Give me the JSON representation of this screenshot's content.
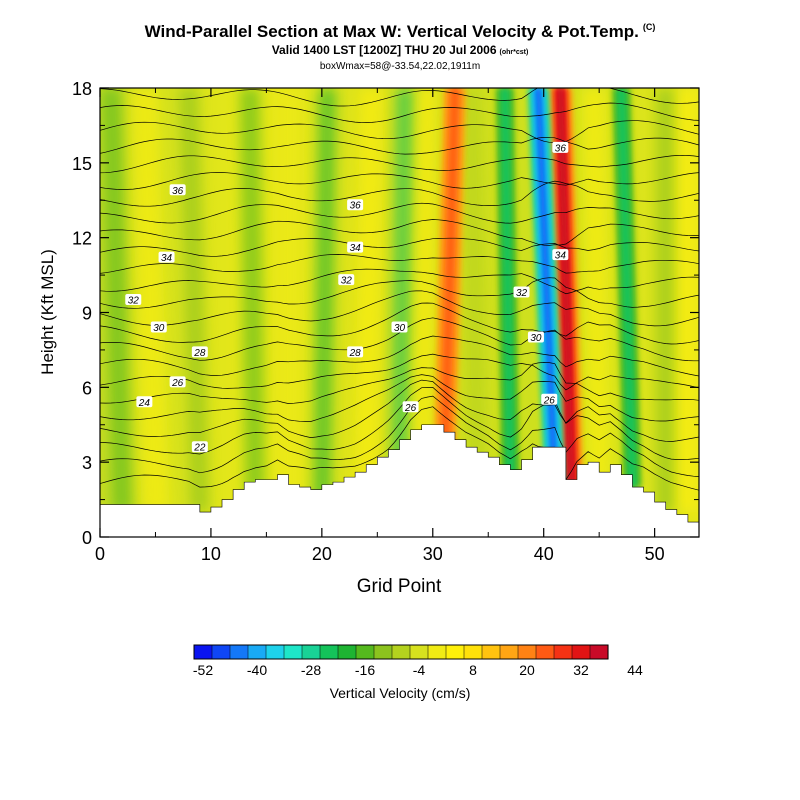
{
  "chart_data": {
    "type": "contour",
    "title": "Wind-Parallel Section at Max W: Vertical Velocity & Pot.Temp.",
    "title_mark": "(C)",
    "subtitle": "Valid 1400 LST [1200Z] THU 20 Jul 2006",
    "subtitle_note": "(ohr*cst)",
    "subtitle2": "boxWmax=58@-33.54,22.02,1911m",
    "xlabel": "Grid Point",
    "ylabel": "Height (Kft MSL)",
    "xlim": [
      0,
      54
    ],
    "ylim": [
      0,
      18
    ],
    "x_ticks": [
      "0",
      "10",
      "20",
      "30",
      "40",
      "50"
    ],
    "y_ticks": [
      "0",
      "3",
      "6",
      "9",
      "12",
      "15",
      "18"
    ],
    "terrain": {
      "x": [
        0,
        8,
        9,
        10,
        11,
        12,
        13,
        14,
        15,
        16,
        17,
        18,
        19,
        20,
        21,
        22,
        23,
        24,
        25,
        26,
        27,
        28,
        29,
        30,
        31,
        32,
        33,
        34,
        35,
        36,
        37,
        38,
        39,
        40,
        41,
        42,
        43,
        44,
        45,
        46,
        47,
        48,
        49,
        50,
        51,
        52,
        53,
        54
      ],
      "y": [
        1.3,
        1.3,
        1.0,
        1.2,
        1.5,
        1.9,
        2.2,
        2.3,
        2.3,
        2.5,
        2.1,
        2.0,
        1.9,
        2.1,
        2.2,
        2.4,
        2.6,
        2.9,
        3.2,
        3.5,
        3.9,
        4.3,
        4.5,
        4.5,
        4.2,
        3.9,
        3.6,
        3.4,
        3.2,
        2.9,
        2.7,
        3.1,
        3.6,
        3.6,
        3.6,
        2.3,
        2.9,
        3.0,
        2.6,
        2.9,
        2.5,
        2.0,
        1.8,
        1.4,
        1.1,
        0.9,
        0.6,
        0.6
      ]
    },
    "theta_contour_labels": [
      {
        "value": "36",
        "x": 7.0,
        "y": 13.9
      },
      {
        "value": "36",
        "x": 23.0,
        "y": 13.3
      },
      {
        "value": "36",
        "x": 41.5,
        "y": 15.6
      },
      {
        "value": "34",
        "x": 6.0,
        "y": 11.2
      },
      {
        "value": "34",
        "x": 23.0,
        "y": 11.6
      },
      {
        "value": "34",
        "x": 41.5,
        "y": 11.3
      },
      {
        "value": "32",
        "x": 3.0,
        "y": 9.5
      },
      {
        "value": "32",
        "x": 22.2,
        "y": 10.3
      },
      {
        "value": "32",
        "x": 38.0,
        "y": 9.8
      },
      {
        "value": "30",
        "x": 5.3,
        "y": 8.4
      },
      {
        "value": "30",
        "x": 27.0,
        "y": 8.4
      },
      {
        "value": "30",
        "x": 39.3,
        "y": 8.0
      },
      {
        "value": "28",
        "x": 9.0,
        "y": 7.4
      },
      {
        "value": "28",
        "x": 23.0,
        "y": 7.4
      },
      {
        "value": "26",
        "x": 7.0,
        "y": 6.2
      },
      {
        "value": "26",
        "x": 28.0,
        "y": 5.2
      },
      {
        "value": "26",
        "x": 40.5,
        "y": 5.5
      },
      {
        "value": "24",
        "x": 4.0,
        "y": 5.4
      },
      {
        "value": "22",
        "x": 9.0,
        "y": 3.6
      }
    ],
    "colorbar": {
      "label": "Vertical Velocity (cm/s)",
      "tick_labels": [
        "-52",
        "-40",
        "-28",
        "-16",
        "-4",
        "8",
        "20",
        "32",
        "44"
      ],
      "colors": [
        "#0a14f0",
        "#0f46f5",
        "#1478f8",
        "#19aaf5",
        "#1ed2eb",
        "#1ee6c8",
        "#19d296",
        "#14c35a",
        "#1eb432",
        "#55b91e",
        "#8cc31e",
        "#b4d21e",
        "#d7e11e",
        "#f0eb14",
        "#fff00a",
        "#ffe10a",
        "#ffc30f",
        "#ffa514",
        "#ff8214",
        "#ff5a14",
        "#f53214",
        "#e11414",
        "#c80a28"
      ]
    },
    "velocity_bands": [
      {
        "sign": "up",
        "x_bottom": 31.0,
        "x_top": 32.0,
        "note": "orange band"
      },
      {
        "sign": "up",
        "x_bottom": 42.5,
        "x_top": 41.5,
        "note": "red band, max ~44"
      },
      {
        "sign": "down",
        "x_bottom": 41.0,
        "x_top": 39.5,
        "note": "cyan/blue band, min ~-52"
      },
      {
        "sign": "down",
        "x_bottom": 37.0,
        "x_top": 36.5,
        "note": "green band"
      },
      {
        "sign": "down",
        "x_bottom": 48.0,
        "x_top": 47.0,
        "note": "green band"
      }
    ]
  }
}
